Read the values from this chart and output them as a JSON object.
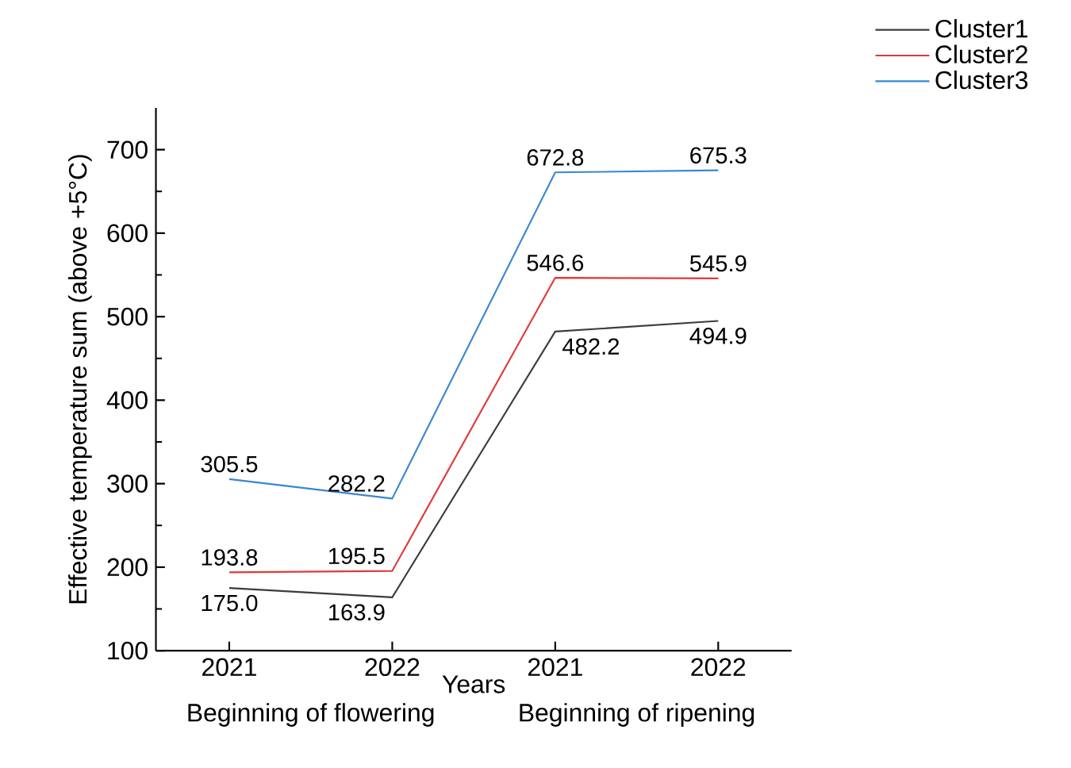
{
  "chart_data": {
    "type": "line",
    "xlabel": "Years",
    "ylabel": "Effective temperature sum (above +5°C)",
    "categories": [
      "2021",
      "2022",
      "2021",
      "2022"
    ],
    "series": [
      {
        "name": "Cluster1",
        "color": "#3c3c3c",
        "values": [
          175.0,
          163.9,
          482.2,
          494.9
        ],
        "value_labels": [
          "175.0",
          "163.9",
          "482.2",
          "494.9"
        ]
      },
      {
        "name": "Cluster2",
        "color": "#e03a3a",
        "values": [
          193.8,
          195.5,
          546.6,
          545.9
        ],
        "value_labels": [
          "193.8",
          "195.5",
          "546.6",
          "545.9"
        ]
      },
      {
        "name": "Cluster3",
        "color": "#3a86d4",
        "values": [
          305.5,
          282.2,
          672.8,
          675.3
        ],
        "value_labels": [
          "305.5",
          "282.2",
          "672.8",
          "675.3"
        ]
      }
    ],
    "ylim": [
      100,
      750
    ],
    "yticks": [
      100,
      200,
      300,
      400,
      500,
      600,
      700
    ],
    "legend": "top right",
    "marker": "none",
    "line_style": "solid",
    "annotations": [
      "Beginning of flowering",
      "Beginning of ripening"
    ]
  }
}
